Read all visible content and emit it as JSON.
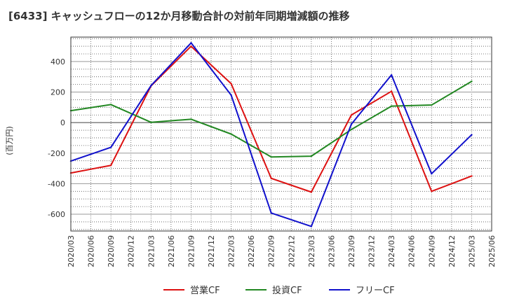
{
  "chart_data": {
    "type": "line",
    "title": "[6433]  キャッシュフローの12か月移動合計の対前年同期増減額の推移",
    "ylabel": "(百万円)",
    "xlabel": "",
    "ylim": [
      -710,
      560
    ],
    "yticks": [
      400,
      200,
      0,
      -200,
      -400,
      -600
    ],
    "ytick_labels": [
      "400",
      "200",
      "0",
      "-200",
      "-400",
      "-600"
    ],
    "x_ticks": [
      "2020/03",
      "2020/06",
      "2020/09",
      "2020/12",
      "2021/03",
      "2021/06",
      "2021/09",
      "2021/12",
      "2022/03",
      "2022/06",
      "2022/09",
      "2022/12",
      "2023/03",
      "2023/06",
      "2023/09",
      "2023/12",
      "2024/03",
      "2024/06",
      "2024/09",
      "2024/12",
      "2025/03",
      "2025/06"
    ],
    "grid": true,
    "legend_position": "bottom",
    "x": [
      "2020/03",
      "2020/09",
      "2021/03",
      "2021/09",
      "2022/03",
      "2022/09",
      "2023/03",
      "2023/09",
      "2024/03",
      "2024/09",
      "2025/03"
    ],
    "series": [
      {
        "name": "営業CF",
        "color": "#dd1111",
        "values": [
          -330,
          -280,
          240,
          500,
          255,
          -365,
          -455,
          50,
          205,
          -450,
          -350
        ]
      },
      {
        "name": "投資CF",
        "color": "#228822",
        "values": [
          78,
          118,
          2,
          22,
          -75,
          -225,
          -220,
          -45,
          108,
          115,
          270
        ]
      },
      {
        "name": "フリーCF",
        "color": "#1111cc",
        "values": [
          -252,
          -162,
          242,
          522,
          180,
          -592,
          -680,
          -10,
          312,
          -335,
          -80
        ]
      }
    ]
  }
}
